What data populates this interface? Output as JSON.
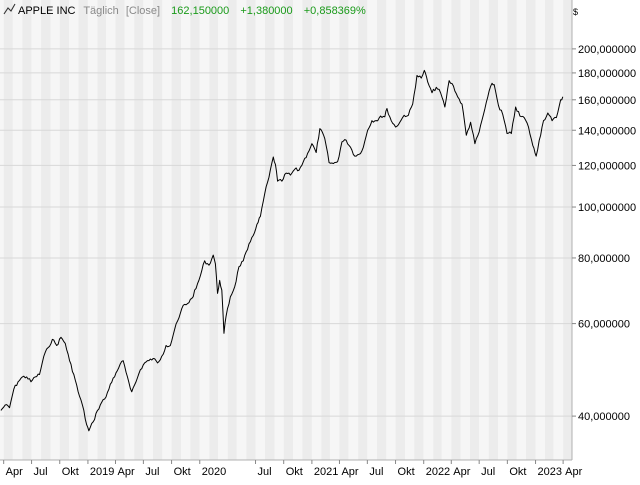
{
  "header": {
    "symbol": "APPLE INC",
    "interval": "Täglich",
    "mode": "[Close]",
    "last": "162,150000",
    "change": "+1,380000",
    "change_pct": "+0,858369%",
    "currency": "$"
  },
  "colors": {
    "line": "#000000",
    "positive": "#1a9a1a",
    "muted": "#8a8a8a",
    "band_light": "#f6f6f6",
    "band_dark": "#ececec",
    "grid": "#d8d8d8"
  },
  "chart_data": {
    "type": "line",
    "scale": "log",
    "ylim": [
      33,
      225
    ],
    "y_ticks": [
      {
        "value": 40,
        "label": "40,000000"
      },
      {
        "value": 60,
        "label": "60,000000"
      },
      {
        "value": 80,
        "label": "80,000000"
      },
      {
        "value": 100,
        "label": "100,000000"
      },
      {
        "value": 120,
        "label": "120,000000"
      },
      {
        "value": 140,
        "label": "140,000000"
      },
      {
        "value": 160,
        "label": "160,000000"
      },
      {
        "value": 180,
        "label": "180,000000"
      },
      {
        "value": 200,
        "label": "200,000000"
      }
    ],
    "xlim": [
      "2018-03-20",
      "2023-04-30"
    ],
    "x_ticks": [
      {
        "date": "2018-04-01",
        "label": "Apr"
      },
      {
        "date": "2018-07-01",
        "label": "Jul"
      },
      {
        "date": "2018-10-01",
        "label": "Okt"
      },
      {
        "date": "2019-01-01",
        "label": "2019"
      },
      {
        "date": "2019-04-01",
        "label": "Apr"
      },
      {
        "date": "2019-07-01",
        "label": "Jul"
      },
      {
        "date": "2019-10-01",
        "label": "Okt"
      },
      {
        "date": "2020-01-01",
        "label": "2020"
      },
      {
        "date": "2020-07-01",
        "label": "Jul"
      },
      {
        "date": "2020-10-01",
        "label": "Okt"
      },
      {
        "date": "2021-01-01",
        "label": "2021"
      },
      {
        "date": "2021-04-01",
        "label": "Apr"
      },
      {
        "date": "2021-07-01",
        "label": "Jul"
      },
      {
        "date": "2021-10-01",
        "label": "Okt"
      },
      {
        "date": "2022-01-01",
        "label": "2022"
      },
      {
        "date": "2022-04-01",
        "label": "Apr"
      },
      {
        "date": "2022-07-01",
        "label": "Jul"
      },
      {
        "date": "2022-10-01",
        "label": "Okt"
      },
      {
        "date": "2023-01-01",
        "label": "2023"
      },
      {
        "date": "2023-04-01",
        "label": "Apr"
      }
    ],
    "series": [
      {
        "values": [
          [
            "2018-03-23",
            41
          ],
          [
            "2018-04-06",
            42
          ],
          [
            "2018-04-20",
            41.5
          ],
          [
            "2018-05-04",
            45
          ],
          [
            "2018-05-18",
            46.5
          ],
          [
            "2018-06-01",
            47.5
          ],
          [
            "2018-06-15",
            47.5
          ],
          [
            "2018-06-29",
            46.5
          ],
          [
            "2018-07-13",
            47.5
          ],
          [
            "2018-07-27",
            48
          ],
          [
            "2018-08-10",
            52
          ],
          [
            "2018-08-24",
            54
          ],
          [
            "2018-09-07",
            56
          ],
          [
            "2018-09-21",
            54.5
          ],
          [
            "2018-10-05",
            56.5
          ],
          [
            "2018-10-19",
            55
          ],
          [
            "2018-11-02",
            51
          ],
          [
            "2018-11-16",
            48
          ],
          [
            "2018-11-30",
            44.5
          ],
          [
            "2018-12-14",
            42
          ],
          [
            "2018-12-28",
            38.5
          ],
          [
            "2019-01-04",
            37.5
          ],
          [
            "2019-01-18",
            39
          ],
          [
            "2019-02-01",
            41
          ],
          [
            "2019-02-15",
            42.5
          ],
          [
            "2019-03-01",
            43.5
          ],
          [
            "2019-03-15",
            46
          ],
          [
            "2019-03-29",
            47.5
          ],
          [
            "2019-04-12",
            49.5
          ],
          [
            "2019-04-26",
            51
          ],
          [
            "2019-05-10",
            47.5
          ],
          [
            "2019-05-24",
            44.5
          ],
          [
            "2019-06-07",
            46.5
          ],
          [
            "2019-06-21",
            49
          ],
          [
            "2019-07-05",
            50.5
          ],
          [
            "2019-07-19",
            51
          ],
          [
            "2019-08-02",
            51.5
          ],
          [
            "2019-08-16",
            50.5
          ],
          [
            "2019-08-30",
            52
          ],
          [
            "2019-09-13",
            54.5
          ],
          [
            "2019-09-27",
            54.5
          ],
          [
            "2019-10-11",
            58.5
          ],
          [
            "2019-10-25",
            61.5
          ],
          [
            "2019-11-08",
            65
          ],
          [
            "2019-11-22",
            65.5
          ],
          [
            "2019-12-06",
            67
          ],
          [
            "2019-12-20",
            70
          ],
          [
            "2020-01-03",
            74
          ],
          [
            "2020-01-17",
            79
          ],
          [
            "2020-01-31",
            77.5
          ],
          [
            "2020-02-14",
            81
          ],
          [
            "2020-02-21",
            78
          ],
          [
            "2020-02-28",
            68.5
          ],
          [
            "2020-03-06",
            72.5
          ],
          [
            "2020-03-13",
            69.5
          ],
          [
            "2020-03-20",
            57.5
          ],
          [
            "2020-03-27",
            62
          ],
          [
            "2020-04-10",
            67.5
          ],
          [
            "2020-04-24",
            70.5
          ],
          [
            "2020-05-08",
            77
          ],
          [
            "2020-05-22",
            79
          ],
          [
            "2020-06-05",
            83
          ],
          [
            "2020-06-19",
            87.5
          ],
          [
            "2020-07-02",
            91
          ],
          [
            "2020-07-17",
            96
          ],
          [
            "2020-07-31",
            106
          ],
          [
            "2020-08-14",
            114
          ],
          [
            "2020-08-28",
            124.5
          ],
          [
            "2020-09-04",
            120.5
          ],
          [
            "2020-09-11",
            112
          ],
          [
            "2020-09-25",
            112
          ],
          [
            "2020-10-09",
            116
          ],
          [
            "2020-10-23",
            115
          ],
          [
            "2020-11-06",
            118
          ],
          [
            "2020-11-20",
            117.5
          ],
          [
            "2020-12-04",
            122
          ],
          [
            "2020-12-18",
            126.5
          ],
          [
            "2021-01-01",
            132
          ],
          [
            "2021-01-15",
            127
          ],
          [
            "2021-01-27",
            141
          ],
          [
            "2021-02-12",
            135
          ],
          [
            "2021-02-26",
            121.5
          ],
          [
            "2021-03-12",
            121
          ],
          [
            "2021-03-26",
            122
          ],
          [
            "2021-04-09",
            133
          ],
          [
            "2021-04-23",
            134
          ],
          [
            "2021-05-07",
            130
          ],
          [
            "2021-05-21",
            125
          ],
          [
            "2021-06-04",
            126
          ],
          [
            "2021-06-18",
            130
          ],
          [
            "2021-07-02",
            140
          ],
          [
            "2021-07-16",
            146
          ],
          [
            "2021-07-30",
            146
          ],
          [
            "2021-08-13",
            149
          ],
          [
            "2021-08-27",
            148.5
          ],
          [
            "2021-09-03",
            154
          ],
          [
            "2021-09-17",
            146
          ],
          [
            "2021-10-01",
            142
          ],
          [
            "2021-10-15",
            145
          ],
          [
            "2021-10-29",
            149.5
          ],
          [
            "2021-11-12",
            149.5
          ],
          [
            "2021-11-26",
            157
          ],
          [
            "2021-12-10",
            178
          ],
          [
            "2021-12-24",
            176
          ],
          [
            "2022-01-03",
            182
          ],
          [
            "2022-01-14",
            173
          ],
          [
            "2022-01-28",
            165
          ],
          [
            "2022-02-11",
            169
          ],
          [
            "2022-02-25",
            165
          ],
          [
            "2022-03-11",
            155
          ],
          [
            "2022-03-25",
            174
          ],
          [
            "2022-04-08",
            170
          ],
          [
            "2022-04-22",
            162
          ],
          [
            "2022-05-06",
            157
          ],
          [
            "2022-05-20",
            137
          ],
          [
            "2022-06-03",
            145
          ],
          [
            "2022-06-17",
            132
          ],
          [
            "2022-07-01",
            139
          ],
          [
            "2022-07-15",
            150
          ],
          [
            "2022-07-29",
            162
          ],
          [
            "2022-08-12",
            172
          ],
          [
            "2022-08-19",
            171
          ],
          [
            "2022-09-02",
            156
          ],
          [
            "2022-09-16",
            150
          ],
          [
            "2022-09-30",
            138
          ],
          [
            "2022-10-14",
            138
          ],
          [
            "2022-10-28",
            155
          ],
          [
            "2022-11-11",
            149
          ],
          [
            "2022-11-25",
            148
          ],
          [
            "2022-12-09",
            142
          ],
          [
            "2022-12-23",
            131
          ],
          [
            "2023-01-03",
            125
          ],
          [
            "2023-01-13",
            134
          ],
          [
            "2023-01-27",
            146
          ],
          [
            "2023-02-10",
            151
          ],
          [
            "2023-02-24",
            146
          ],
          [
            "2023-03-10",
            148
          ],
          [
            "2023-03-24",
            160
          ],
          [
            "2023-03-31",
            162.15
          ]
        ]
      }
    ]
  }
}
